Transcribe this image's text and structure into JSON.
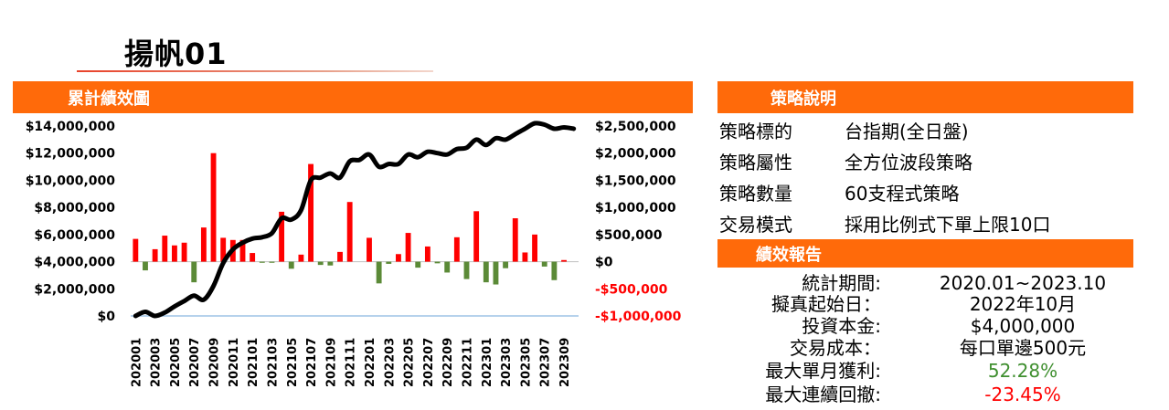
{
  "title": "揚帆01",
  "chart_header": "累計績效圖",
  "strategy_header": "策略說明",
  "perf_header": "績效報告",
  "colors": {
    "accent": "#ff6a0a",
    "positive_bar": "#ff0000",
    "negative_bar": "#5b8a37",
    "line": "#000000",
    "right_axis_negative": "#ff0000",
    "gain_text": "#3f8f2f",
    "loss_text": "#ff0000"
  },
  "strategy": [
    {
      "label": "策略標的",
      "value": "台指期(全日盤)"
    },
    {
      "label": "策略屬性",
      "value": "全方位波段策略"
    },
    {
      "label": "策略數量",
      "value": "60支程式策略"
    },
    {
      "label": "交易模式",
      "value": "採用比例式下單上限10口"
    }
  ],
  "performance": [
    {
      "label": "統計期間:",
      "value": "2020.01~2023.10",
      "tone": "normal"
    },
    {
      "label": "擬真起始日：",
      "value": "2022年10月",
      "tone": "normal"
    },
    {
      "label": "投資本金:",
      "value": "$4,000,000",
      "tone": "normal"
    },
    {
      "label": "交易成本：",
      "value": "每口單邊500元",
      "tone": "normal"
    },
    {
      "label": "最大單月獲利:",
      "value": "52.28%",
      "tone": "gain"
    },
    {
      "label": "最大連續回撤:",
      "value": "-23.45%",
      "tone": "loss"
    }
  ],
  "chart_data": {
    "type": "bar+line",
    "title": "",
    "left_axis": {
      "ylim": [
        0,
        14000000
      ],
      "ticks": [
        0,
        2000000,
        4000000,
        6000000,
        8000000,
        10000000,
        12000000,
        14000000
      ],
      "tick_labels": [
        "$0",
        "$2,000,000",
        "$4,000,000",
        "$6,000,000",
        "$8,000,000",
        "$10,000,000",
        "$12,000,000",
        "$14,000,000"
      ]
    },
    "right_axis": {
      "ylim": [
        -1000000,
        2500000
      ],
      "ticks": [
        -1000000,
        -500000,
        0,
        500000,
        1000000,
        1500000,
        2000000,
        2500000
      ],
      "tick_labels": [
        "-$1,000,000",
        "-$500,000",
        "$0",
        "$500,000",
        "$1,000,000",
        "$1,500,000",
        "$2,000,000",
        "$2,500,000"
      ]
    },
    "x_tick_labels": [
      "202001",
      "202003",
      "202005",
      "202007",
      "202009",
      "202011",
      "202101",
      "202103",
      "202105",
      "202107",
      "202109",
      "202111",
      "202201",
      "202203",
      "202205",
      "202207",
      "202209",
      "202211",
      "202301",
      "202303",
      "202305",
      "202307",
      "202309"
    ],
    "categories": [
      "202001",
      "202002",
      "202003",
      "202004",
      "202005",
      "202006",
      "202007",
      "202008",
      "202009",
      "202010",
      "202011",
      "202012",
      "202101",
      "202102",
      "202103",
      "202104",
      "202105",
      "202106",
      "202107",
      "202108",
      "202109",
      "202110",
      "202111",
      "202112",
      "202201",
      "202202",
      "202203",
      "202204",
      "202205",
      "202206",
      "202207",
      "202208",
      "202209",
      "202210",
      "202211",
      "202212",
      "202301",
      "202302",
      "202303",
      "202304",
      "202305",
      "202306",
      "202307",
      "202308",
      "202309",
      "202310"
    ],
    "series": [
      {
        "kind": "bar",
        "axis": "right",
        "values": [
          420000,
          -160000,
          230000,
          480000,
          300000,
          350000,
          -380000,
          630000,
          2000000,
          440000,
          400000,
          400000,
          160000,
          -20000,
          -20000,
          920000,
          -130000,
          130000,
          1800000,
          -60000,
          -70000,
          180000,
          1100000,
          0,
          440000,
          -400000,
          -40000,
          140000,
          530000,
          -110000,
          280000,
          -30000,
          -200000,
          450000,
          -320000,
          930000,
          -380000,
          -420000,
          -120000,
          800000,
          170000,
          500000,
          -90000,
          -340000,
          30000,
          0
        ]
      },
      {
        "kind": "line",
        "axis": "left",
        "values": [
          0,
          300000,
          0,
          250000,
          700000,
          1100000,
          1500000,
          1200000,
          2200000,
          3900000,
          4900000,
          5400000,
          5700000,
          5800000,
          6100000,
          7200000,
          7100000,
          7800000,
          10000000,
          10200000,
          10500000,
          10200000,
          11400000,
          11500000,
          11900000,
          11000000,
          11200000,
          11200000,
          11900000,
          11700000,
          12100000,
          12000000,
          11900000,
          12300000,
          12400000,
          13000000,
          12600000,
          13100000,
          13000000,
          13400000,
          13800000,
          14200000,
          14100000,
          13800000,
          13900000,
          13800000
        ]
      }
    ]
  }
}
